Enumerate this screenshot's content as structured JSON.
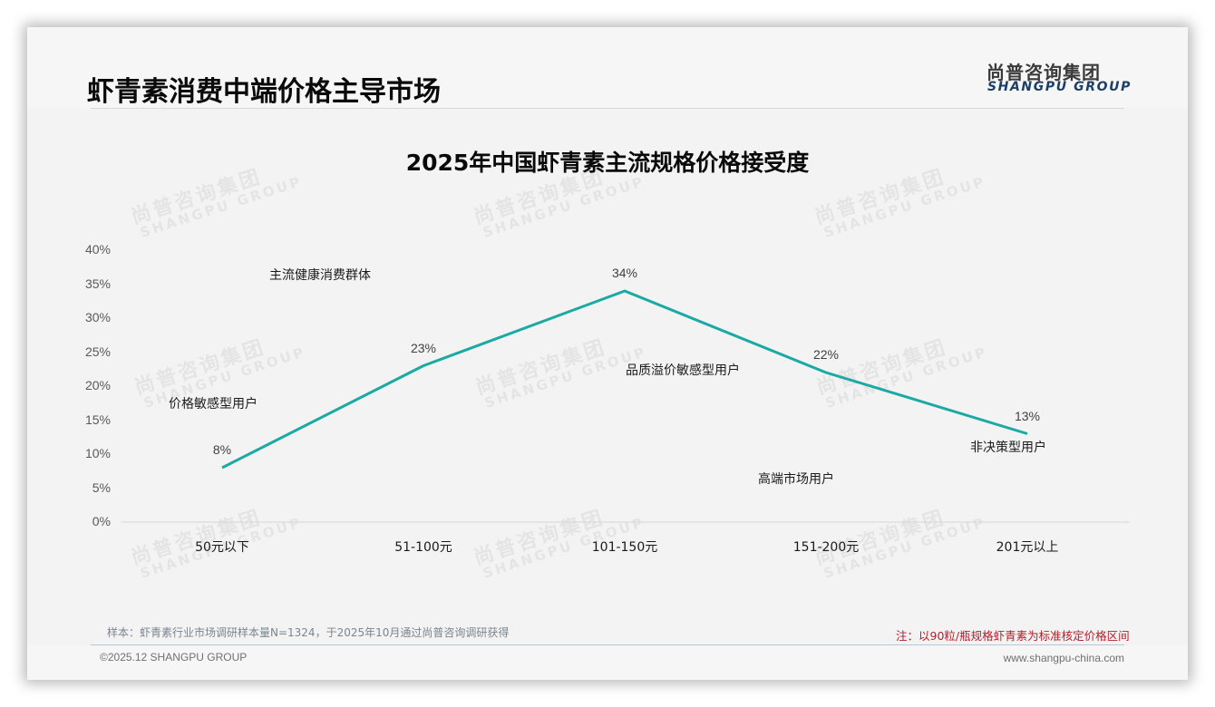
{
  "header": {
    "page_title": "虾青素消费中端价格主导市场",
    "logo_cn": "尚普咨询集团",
    "logo_en": "SHANGPU GROUP"
  },
  "watermark": {
    "cn": "尚普咨询集团",
    "en": "SHANGPU GROUP"
  },
  "colors": {
    "line": "#1aa9a3",
    "note_red": "#b3202a",
    "logo_blue": "#1d3f66"
  },
  "chart_data": {
    "type": "line",
    "title": "2025年中国虾青素主流规格价格接受度",
    "categories": [
      "50元以下",
      "51-100元",
      "101-150元",
      "151-200元",
      "201元以上"
    ],
    "values": [
      8,
      23,
      34,
      22,
      13
    ],
    "value_labels": [
      "8%",
      "23%",
      "34%",
      "22%",
      "13%"
    ],
    "y_ticks": [
      "0%",
      "5%",
      "10%",
      "15%",
      "20%",
      "25%",
      "30%",
      "35%",
      "40%"
    ],
    "ylim": [
      0,
      40
    ],
    "xlabel": "",
    "ylabel": "",
    "grid": false,
    "legend": null,
    "annotations": [
      {
        "text": "主流健康消费群体"
      },
      {
        "text": "价格敏感型用户"
      },
      {
        "text": "品质溢价敏感型用户"
      },
      {
        "text": "高端市场用户"
      },
      {
        "text": "非决策型用户"
      }
    ]
  },
  "footer": {
    "sample_note": "样本：虾青素行业市场调研样本量N=1324，于2025年10月通过尚普咨询调研获得",
    "red_note": "注：以90粒/瓶规格虾青素为标准核定价格区间",
    "copyright": "©2025.12 SHANGPU GROUP",
    "website": "www.shangpu-china.com"
  }
}
